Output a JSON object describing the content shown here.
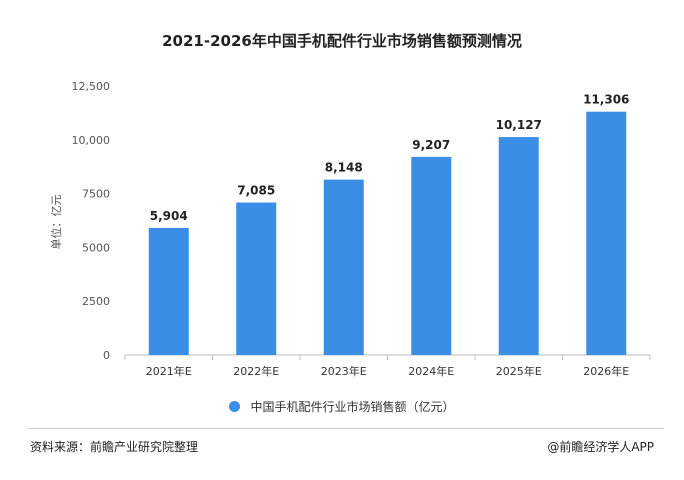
{
  "chart_data": {
    "type": "bar",
    "title": "2021-2026年中国手机配件行业市场销售额预测情况",
    "ylabel": "单位：亿元",
    "categories": [
      "2021年E",
      "2022年E",
      "2023年E",
      "2024年E",
      "2025年E",
      "2026年E"
    ],
    "series": [
      {
        "name": "中国手机配件行业市场销售额（亿元）",
        "values": [
          5904,
          7085,
          8148,
          9207,
          10127,
          11306
        ]
      }
    ],
    "data_labels": [
      "5,904",
      "7,085",
      "8,148",
      "9,207",
      "10,127",
      "11,306"
    ],
    "ylim": [
      0,
      12500
    ],
    "yticks": [
      0,
      2500,
      5000,
      7500,
      10000,
      12500
    ],
    "ytick_labels": [
      "0",
      "2500",
      "5000",
      "7500",
      "10,000",
      "12,500"
    ],
    "grid": false,
    "legend_position": "bottom",
    "bar_color": "#3a8ee6"
  },
  "footer": {
    "source": "资料来源：前瞻产业研究院整理",
    "brand": "@前瞻经济学人APP"
  }
}
